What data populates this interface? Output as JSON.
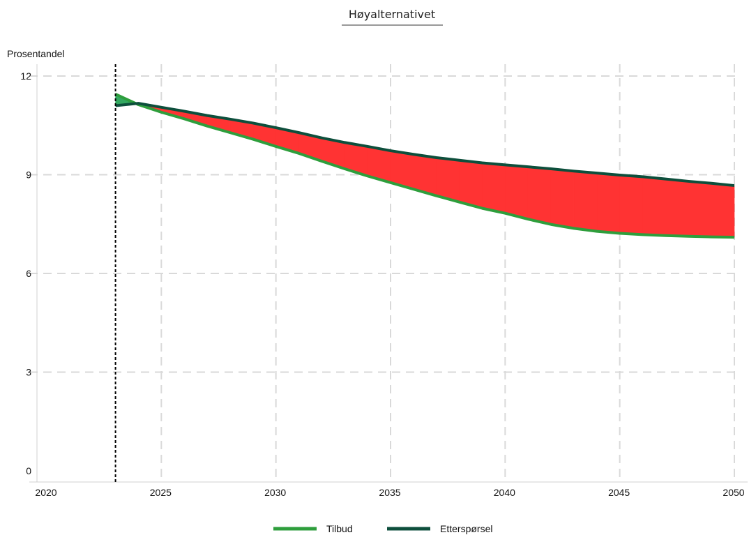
{
  "chart_data": {
    "type": "area",
    "title": "Høyalternativet",
    "ylabel": "Prosentandel",
    "xlabel": "",
    "xlim": [
      2020,
      2050
    ],
    "ylim": [
      0,
      12
    ],
    "xticks": [
      "2020",
      "2025",
      "2030",
      "2035",
      "2040",
      "2045",
      "2050"
    ],
    "yticks": [
      "0",
      "3",
      "6",
      "9",
      "12"
    ],
    "grid": true,
    "legend_position": "bottom",
    "vertical_marker_x": 2023,
    "x": [
      2023,
      2024,
      2025,
      2026,
      2027,
      2028,
      2029,
      2030,
      2031,
      2032,
      2033,
      2034,
      2035,
      2036,
      2037,
      2038,
      2039,
      2040,
      2041,
      2042,
      2043,
      2044,
      2045,
      2046,
      2047,
      2048,
      2049,
      2050
    ],
    "series": [
      {
        "name": "Tilbud",
        "color": "#2e9e3c",
        "values": [
          11.45,
          11.13,
          10.9,
          10.7,
          10.48,
          10.28,
          10.08,
          9.86,
          9.65,
          9.41,
          9.18,
          8.96,
          8.76,
          8.56,
          8.36,
          8.17,
          7.98,
          7.83,
          7.65,
          7.49,
          7.37,
          7.28,
          7.22,
          7.18,
          7.15,
          7.13,
          7.11,
          7.1
        ]
      },
      {
        "name": "Etterspørsel",
        "color": "#0d4f3c",
        "values": [
          11.1,
          11.17,
          11.05,
          10.93,
          10.8,
          10.69,
          10.57,
          10.43,
          10.28,
          10.12,
          9.98,
          9.86,
          9.73,
          9.62,
          9.52,
          9.44,
          9.36,
          9.3,
          9.24,
          9.18,
          9.11,
          9.05,
          8.99,
          8.94,
          8.87,
          8.8,
          8.74,
          8.67
        ]
      }
    ],
    "fill_colors": {
      "deficit": "#ff3333",
      "surplus": "#33a860"
    }
  }
}
